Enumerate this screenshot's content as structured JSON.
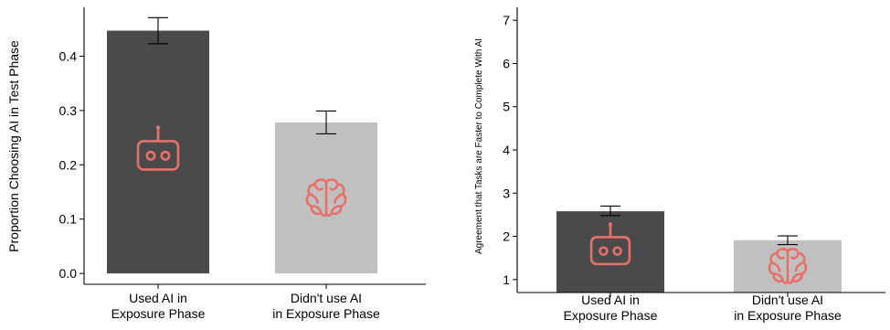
{
  "chart_data": [
    {
      "type": "bar",
      "categories": [
        [
          "Used AI in",
          "Exposure Phase"
        ],
        [
          "Didn't use AI",
          "in Exposure Phase"
        ]
      ],
      "values": [
        0.447,
        0.278
      ],
      "error_bars": [
        [
          0.423,
          0.471
        ],
        [
          0.257,
          0.299
        ]
      ],
      "bar_colors": [
        "#4a4a4a",
        "#c0c0c0"
      ],
      "icons": [
        "robot-icon",
        "brain-icon"
      ],
      "ylabel": "Proportion Choosing AI in Test Phase",
      "xlabel": "",
      "ylim": [
        -0.02,
        0.49
      ],
      "yticks": [
        0.0,
        0.1,
        0.2,
        0.3,
        0.4
      ],
      "ytick_labels": [
        "0.0",
        "0.1",
        "0.2",
        "0.3",
        "0.4"
      ],
      "grid": false,
      "legend": "none"
    },
    {
      "type": "bar",
      "categories": [
        [
          "Used AI in",
          "Exposure Phase"
        ],
        [
          "Didn't use AI",
          "in Exposure Phase"
        ]
      ],
      "values": [
        2.58,
        1.91
      ],
      "error_bars": [
        [
          2.48,
          2.7
        ],
        [
          1.81,
          2.01
        ]
      ],
      "bar_colors": [
        "#4a4a4a",
        "#c0c0c0"
      ],
      "icons": [
        "robot-icon",
        "brain-icon"
      ],
      "ylabel": "Agreement that Tasks are Faster to Complete With AI",
      "xlabel": "",
      "ylim": [
        0.7,
        7.3
      ],
      "yticks": [
        1,
        2,
        3,
        4,
        5,
        6,
        7
      ],
      "ytick_labels": [
        "1",
        "2",
        "3",
        "4",
        "5",
        "6",
        "7"
      ],
      "grid": false,
      "legend": "none"
    }
  ],
  "colors": {
    "icon": "#e8706a",
    "used_ai_bar": "#4a4a4a",
    "no_ai_bar": "#c0c0c0"
  }
}
